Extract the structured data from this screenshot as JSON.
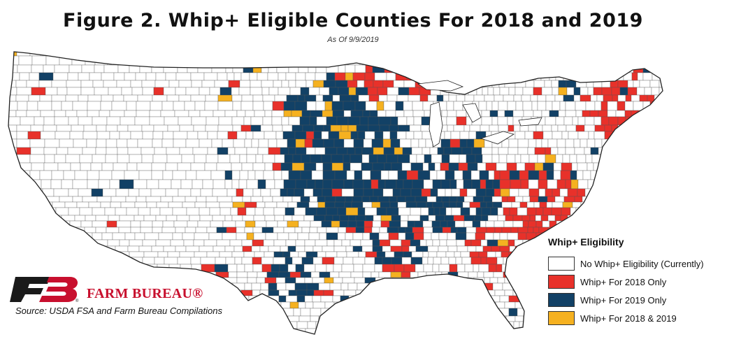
{
  "title": "Figure 2. Whip+ Eligible Counties For 2018 and 2019",
  "subtitle": "As Of 9/9/2019",
  "legend": {
    "title": "Whip+ Eligibility",
    "items": [
      {
        "label": "No Whip+ Eligibility (Currently)",
        "color": "#ffffff"
      },
      {
        "label": "Whip+ For 2018 Only",
        "color": "#e8312a"
      },
      {
        "label": "Whip+ For 2019 Only",
        "color": "#124166"
      },
      {
        "label": "Whip+ For 2018 & 2019",
        "color": "#f5b120"
      }
    ]
  },
  "logo": {
    "text": "FARM BUREAU®",
    "icon": "farm-bureau-fb-logo",
    "color": "#c8102e"
  },
  "source": "Source: USDA FSA and Farm Bureau Compilations"
}
